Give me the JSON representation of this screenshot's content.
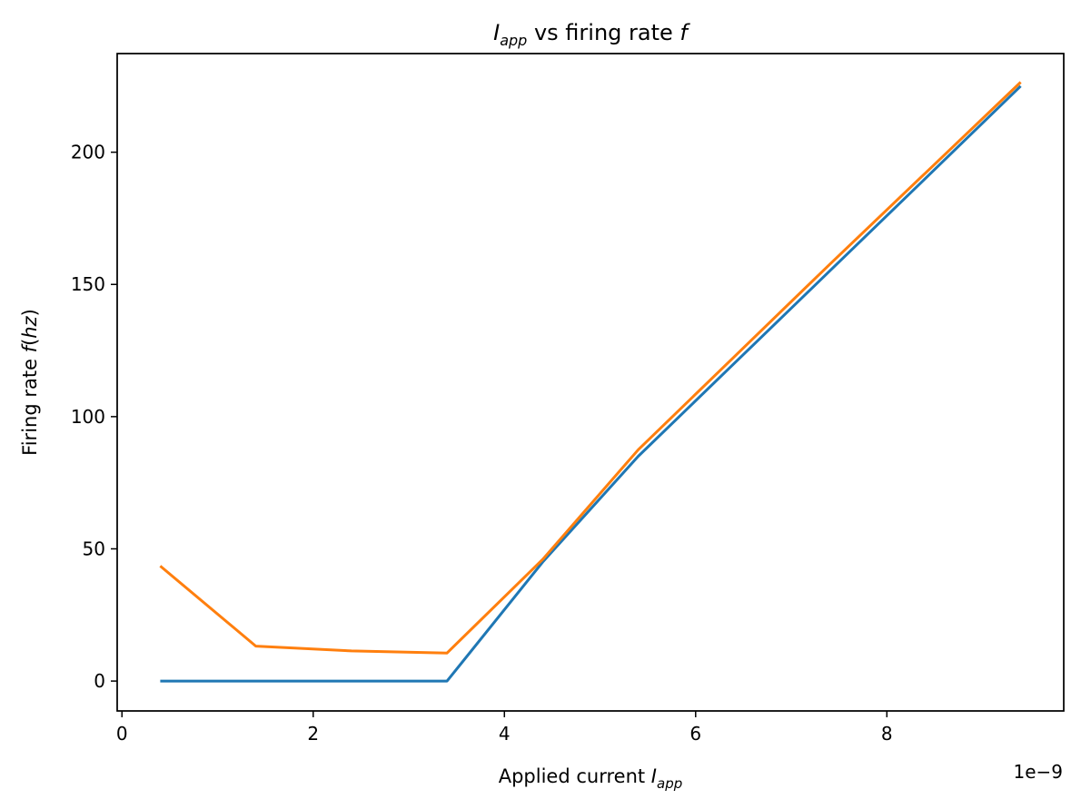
{
  "chart_data": {
    "type": "line",
    "title": {
      "main": "I",
      "sub": "app",
      "rest": " vs firing rate ",
      "tail": "f"
    },
    "xlabel": {
      "main": "Applied current ",
      "var": "I",
      "sub": "app"
    },
    "ylabel": {
      "main": "Firing rate ",
      "var": "f",
      "rest": "(",
      "var2": "hz",
      "close": ")"
    },
    "x_offset_label": "1e−9",
    "xlim": [
      -0.05,
      9.85
    ],
    "ylim": [
      -11.3,
      237.3
    ],
    "x_ticks": [
      0,
      2,
      4,
      6,
      8
    ],
    "x_tick_labels": [
      "0",
      "2",
      "4",
      "6",
      "8"
    ],
    "y_ticks": [
      0,
      50,
      100,
      150,
      200
    ],
    "y_tick_labels": [
      "0",
      "50",
      "100",
      "150",
      "200"
    ],
    "grid": false,
    "series": [
      {
        "color": "#1f77b4",
        "x": [
          0.4,
          1.4,
          2.4,
          3.4,
          4.4,
          5.4,
          6.4,
          7.4,
          8.4,
          9.4
        ],
        "y": [
          0,
          0,
          0,
          0,
          45,
          85,
          120,
          155,
          190,
          225
        ]
      },
      {
        "color": "#ff7f0e",
        "x": [
          0.4,
          1.4,
          2.4,
          3.4,
          4.4,
          5.4,
          6.4,
          7.4,
          8.4,
          9.4
        ],
        "y": [
          43.5,
          13.2,
          11.4,
          10.6,
          46,
          87.5,
          122.5,
          157.5,
          192,
          226.5
        ]
      }
    ]
  }
}
